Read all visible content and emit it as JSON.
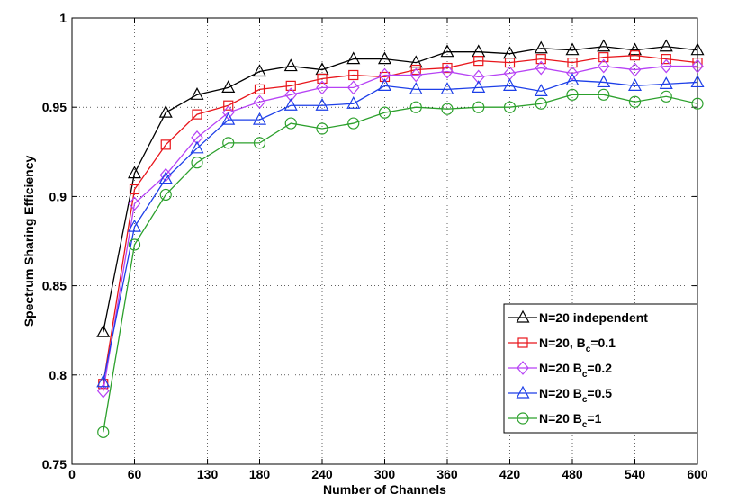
{
  "chart_data": {
    "type": "line",
    "title": "",
    "xlabel": "Number of Channels",
    "ylabel": "Spectrum Sharing Efficiency",
    "xlim": [
      0,
      600
    ],
    "ylim": [
      0.75,
      1
    ],
    "xticks": [
      0,
      60,
      130,
      180,
      240,
      300,
      360,
      420,
      480,
      540,
      600
    ],
    "xtick_labels": [
      "0",
      "60",
      "130",
      "180",
      "240",
      "300",
      "360",
      "420",
      "480",
      "540",
      "600"
    ],
    "yticks": [
      0.75,
      0.8,
      0.85,
      0.9,
      0.95,
      1
    ],
    "ytick_labels": [
      "0.75",
      "0.8",
      "0.85",
      "0.9",
      "0.95",
      "1"
    ],
    "grid": true,
    "legend_position": "lower-right",
    "x": [
      30,
      60,
      90,
      120,
      150,
      180,
      210,
      240,
      270,
      300,
      330,
      360,
      390,
      420,
      450,
      480,
      510,
      540,
      570,
      600
    ],
    "series": [
      {
        "name": "N=20 independent",
        "legend_parts": {
          "main": "N=20 independent",
          "sub": "",
          "tail": ""
        },
        "color": "#000000",
        "marker": "triangle",
        "values": [
          0.824,
          0.913,
          0.947,
          0.957,
          0.961,
          0.97,
          0.973,
          0.971,
          0.977,
          0.977,
          0.975,
          0.981,
          0.981,
          0.98,
          0.983,
          0.982,
          0.984,
          0.982,
          0.984,
          0.982
        ]
      },
      {
        "name": "N=20, Bc=0.1",
        "legend_parts": {
          "main": "N=20, B",
          "sub": "c",
          "tail": "=0.1"
        },
        "color": "#e8151b",
        "marker": "square",
        "values": [
          0.795,
          0.904,
          0.929,
          0.946,
          0.951,
          0.96,
          0.962,
          0.966,
          0.968,
          0.967,
          0.971,
          0.972,
          0.976,
          0.975,
          0.977,
          0.975,
          0.978,
          0.979,
          0.977,
          0.975
        ]
      },
      {
        "name": "N=20 Bc=0.2",
        "legend_parts": {
          "main": "N=20 B",
          "sub": "c",
          "tail": "=0.2"
        },
        "color": "#b642f5",
        "marker": "diamond",
        "values": [
          0.791,
          0.896,
          0.912,
          0.933,
          0.947,
          0.953,
          0.957,
          0.961,
          0.961,
          0.968,
          0.968,
          0.97,
          0.967,
          0.969,
          0.972,
          0.969,
          0.973,
          0.971,
          0.973,
          0.973
        ]
      },
      {
        "name": "N=20 Bc=0.5",
        "legend_parts": {
          "main": "N=20 B",
          "sub": "c",
          "tail": "=0.5"
        },
        "color": "#1d3fe8",
        "marker": "triangle",
        "values": [
          0.796,
          0.883,
          0.91,
          0.927,
          0.943,
          0.943,
          0.951,
          0.951,
          0.952,
          0.962,
          0.96,
          0.96,
          0.961,
          0.962,
          0.959,
          0.965,
          0.964,
          0.962,
          0.963,
          0.964
        ]
      },
      {
        "name": "N=20 Bc=1",
        "legend_parts": {
          "main": "N=20 B",
          "sub": "c",
          "tail": "=1"
        },
        "color": "#2ca02c",
        "marker": "circle",
        "values": [
          0.768,
          0.873,
          0.901,
          0.919,
          0.93,
          0.93,
          0.941,
          0.938,
          0.941,
          0.947,
          0.95,
          0.949,
          0.95,
          0.95,
          0.952,
          0.957,
          0.957,
          0.953,
          0.956,
          0.952
        ]
      }
    ]
  }
}
